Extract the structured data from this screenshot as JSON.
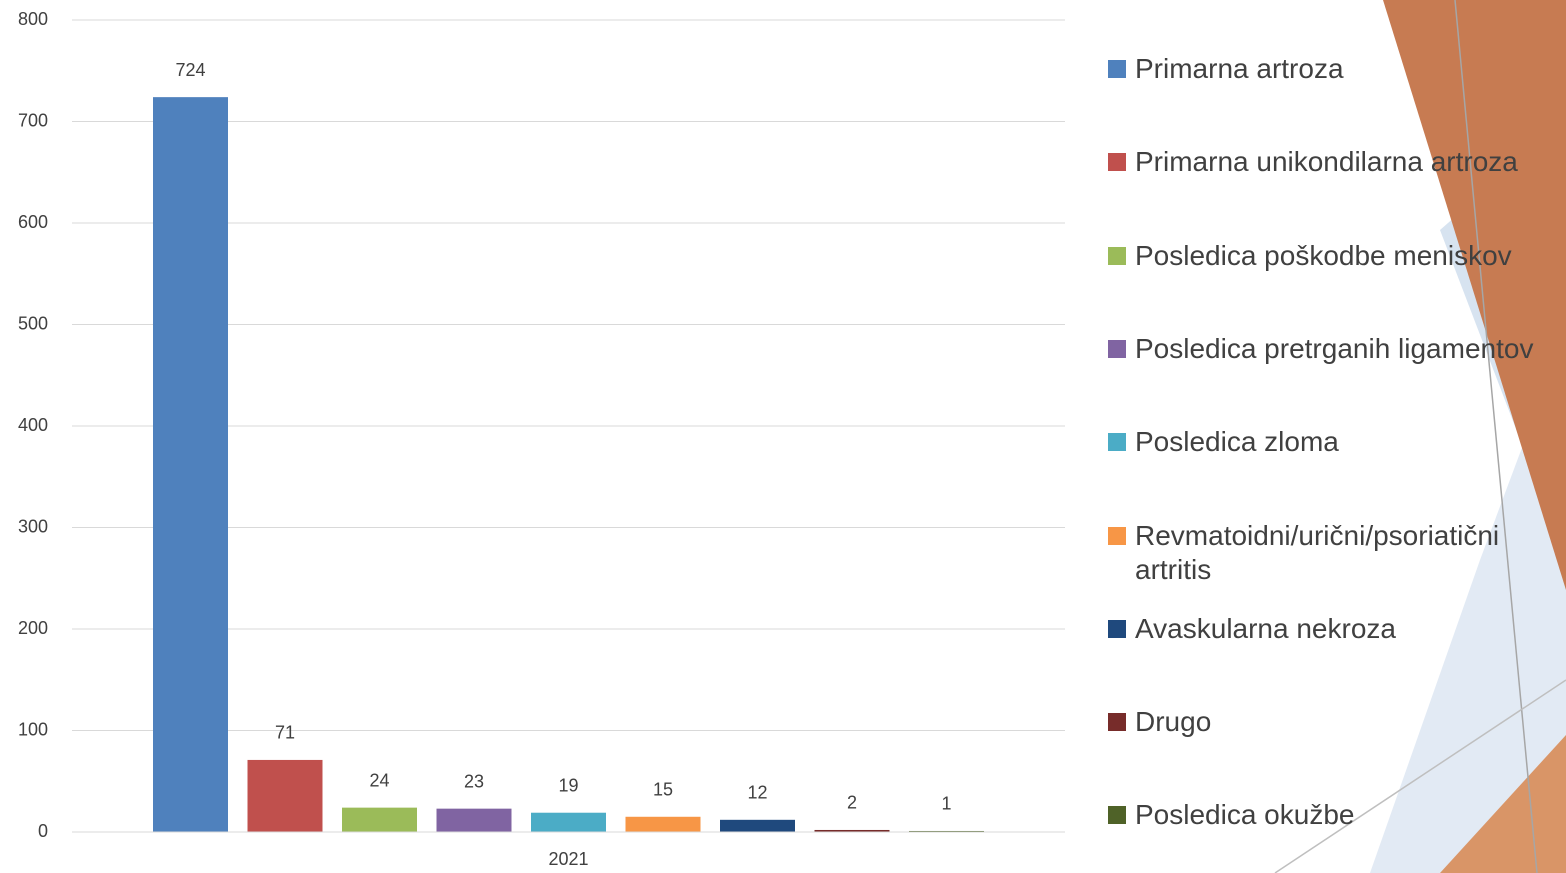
{
  "chart_data": {
    "type": "bar",
    "categories": [
      "2021"
    ],
    "series": [
      {
        "name": "Primarna artroza",
        "color": "#4f81bd",
        "values": [
          724
        ]
      },
      {
        "name": "Primarna unikondilarna artroza",
        "color": "#c0504d",
        "values": [
          71
        ]
      },
      {
        "name": "Posledica poškodbe meniskov",
        "color": "#9bbb59",
        "values": [
          24
        ]
      },
      {
        "name": "Posledica pretrganih ligamentov",
        "color": "#8064a2",
        "values": [
          23
        ]
      },
      {
        "name": "Posledica zloma",
        "color": "#4bacc6",
        "values": [
          19
        ]
      },
      {
        "name": "Revmatoidni/urični/psoriatični artritis",
        "color": "#f79646",
        "values": [
          15
        ]
      },
      {
        "name": "Avaskularna nekroza",
        "color": "#1f497d",
        "values": [
          12
        ]
      },
      {
        "name": "Drugo",
        "color": "#772c2a",
        "values": [
          2
        ]
      },
      {
        "name": "Posledica okužbe",
        "color": "#4f6228",
        "values": [
          1
        ]
      }
    ],
    "ylim": [
      0,
      800
    ],
    "yticks": [
      0,
      100,
      200,
      300,
      400,
      500,
      600,
      700,
      800
    ],
    "grid": true
  }
}
